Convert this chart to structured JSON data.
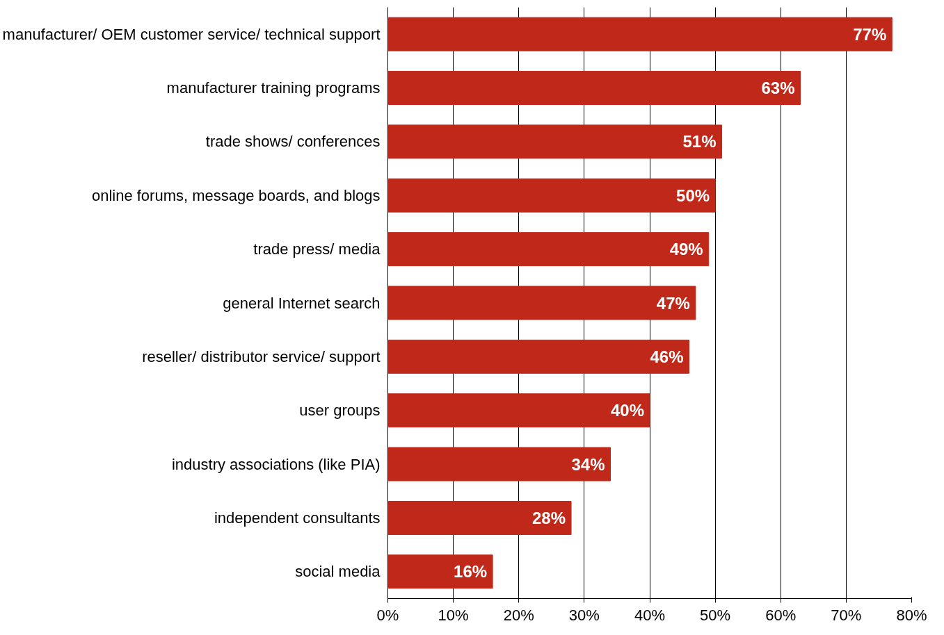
{
  "chart_data": {
    "type": "bar",
    "orientation": "horizontal",
    "categories": [
      "manufacturer/ OEM customer service/ technical support",
      "manufacturer training programs",
      "trade shows/ conferences",
      "online forums, message boards, and blogs",
      "trade press/ media",
      "general Internet search",
      "reseller/ distributor service/ support",
      "user groups",
      "industry associations (like PIA)",
      "independent consultants",
      "social media"
    ],
    "values": [
      77,
      63,
      51,
      50,
      49,
      47,
      46,
      40,
      34,
      28,
      16
    ],
    "value_labels": [
      "77%",
      "63%",
      "51%",
      "50%",
      "49%",
      "47%",
      "46%",
      "40%",
      "34%",
      "28%",
      "16%"
    ],
    "color": "#c0281a",
    "xlim": [
      0,
      80
    ],
    "xticks": [
      {
        "value": 0,
        "label": "0%"
      },
      {
        "value": 10,
        "label": "10%"
      },
      {
        "value": 20,
        "label": "20%"
      },
      {
        "value": 30,
        "label": "30%"
      },
      {
        "value": 40,
        "label": "40%"
      },
      {
        "value": 50,
        "label": "50%"
      },
      {
        "value": 60,
        "label": "60%"
      },
      {
        "value": 70,
        "label": "70%"
      },
      {
        "value": 80,
        "label": "80%"
      }
    ],
    "grid": "x"
  }
}
